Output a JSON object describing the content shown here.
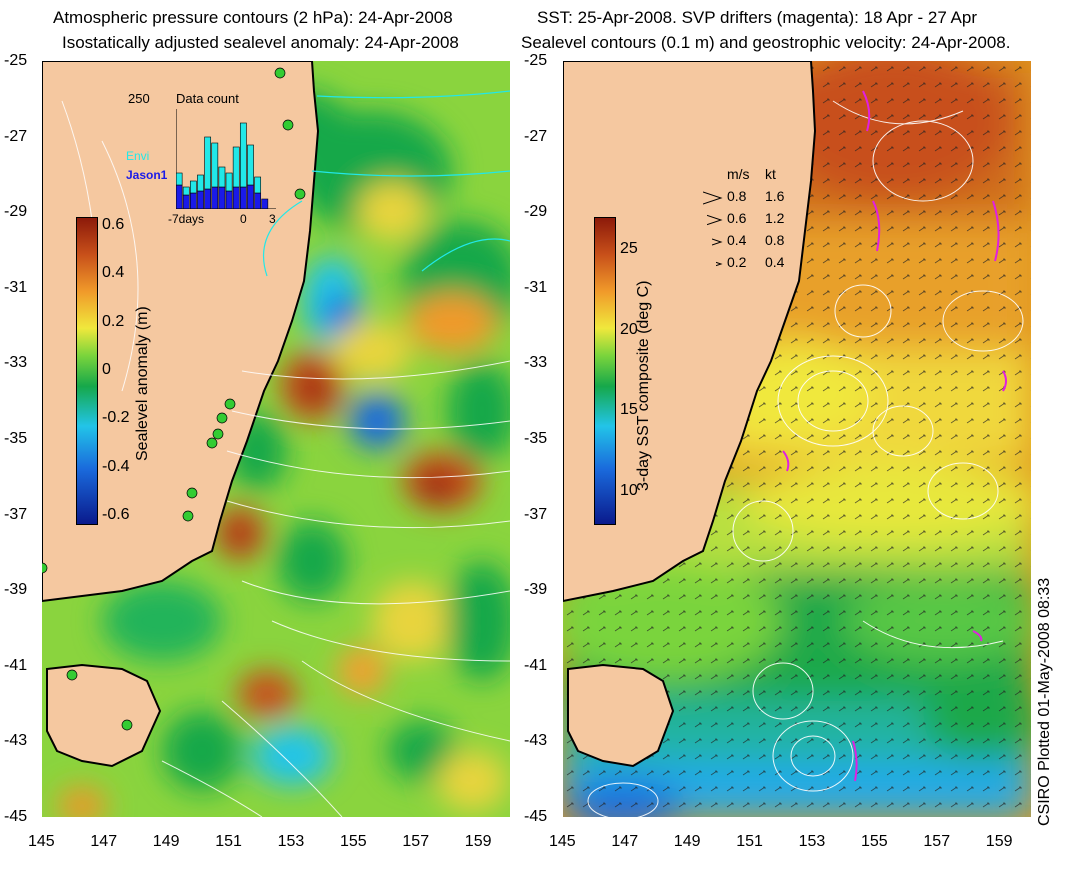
{
  "left_panel": {
    "title_line1": "Atmospheric pressure contours (2 hPa): 24-Apr-2008",
    "title_line2": "Isostatically adjusted sealevel anomaly: 24-Apr-2008",
    "colorbar": {
      "label": "Sealevel anomaly (m)",
      "ticks": [
        "0.6",
        "0.4",
        "0.2",
        "0",
        "-0.2",
        "-0.4",
        "-0.6"
      ],
      "range": [
        -0.6,
        0.6
      ],
      "colors": [
        "#0a1a8c",
        "#1a6adc",
        "#22c4e8",
        "#16a84a",
        "#7ad43c",
        "#f0e83c",
        "#f09a2a",
        "#c8501a",
        "#8c1a0a"
      ]
    },
    "inset": {
      "title": "Data count",
      "ymax_label": "250",
      "x_labels": [
        "-7days",
        "0",
        "3"
      ],
      "series": [
        {
          "name": "Envi",
          "color": "#22e8e8",
          "values": [
            30,
            20,
            30,
            40,
            130,
            110,
            50,
            45,
            100,
            160,
            100,
            40,
            0,
            0
          ]
        },
        {
          "name": "Jason1",
          "color": "#1a1ae8",
          "values": [
            60,
            35,
            40,
            45,
            50,
            55,
            55,
            45,
            55,
            55,
            60,
            40,
            25,
            0
          ]
        }
      ]
    }
  },
  "right_panel": {
    "title_line1": "SST: 25-Apr-2008. SVP drifters (magenta): 18 Apr - 27 Apr",
    "title_line2": "Sealevel contours (0.1 m) and geostrophic velocity: 24-Apr-2008.",
    "colorbar": {
      "label": "3-day SST composite (deg C)",
      "ticks": [
        "25",
        "20",
        "15",
        "10"
      ],
      "range": [
        8.5,
        26.5
      ],
      "colors": [
        "#0a1a8c",
        "#1a6adc",
        "#22c4e8",
        "#16a84a",
        "#7ad43c",
        "#f0e83c",
        "#f09a2a",
        "#c8501a",
        "#8c1a0a"
      ]
    },
    "velocity_legend": {
      "header_ms": "m/s",
      "header_kt": "kt",
      "rows": [
        {
          "ms": "0.8",
          "kt": "1.6"
        },
        {
          "ms": "0.6",
          "kt": "1.2"
        },
        {
          "ms": "0.4",
          "kt": "0.8"
        },
        {
          "ms": "0.2",
          "kt": "0.4"
        }
      ]
    }
  },
  "axes": {
    "lat_ticks": [
      "-25",
      "-27",
      "-29",
      "-31",
      "-33",
      "-35",
      "-37",
      "-39",
      "-41",
      "-43",
      "-45"
    ],
    "lon_ticks": [
      "145",
      "147",
      "149",
      "151",
      "153",
      "155",
      "157",
      "159"
    ],
    "lat_range": [
      -45,
      -25
    ],
    "lon_range": [
      145,
      160
    ]
  },
  "credit": "CSIRO Plotted 01-May-2008 08:33",
  "colors": {
    "land": "#f5c8a0",
    "coast": "#000000",
    "contour": "#ffffff",
    "drifter": "#e020e0",
    "station": "#33cc33"
  }
}
